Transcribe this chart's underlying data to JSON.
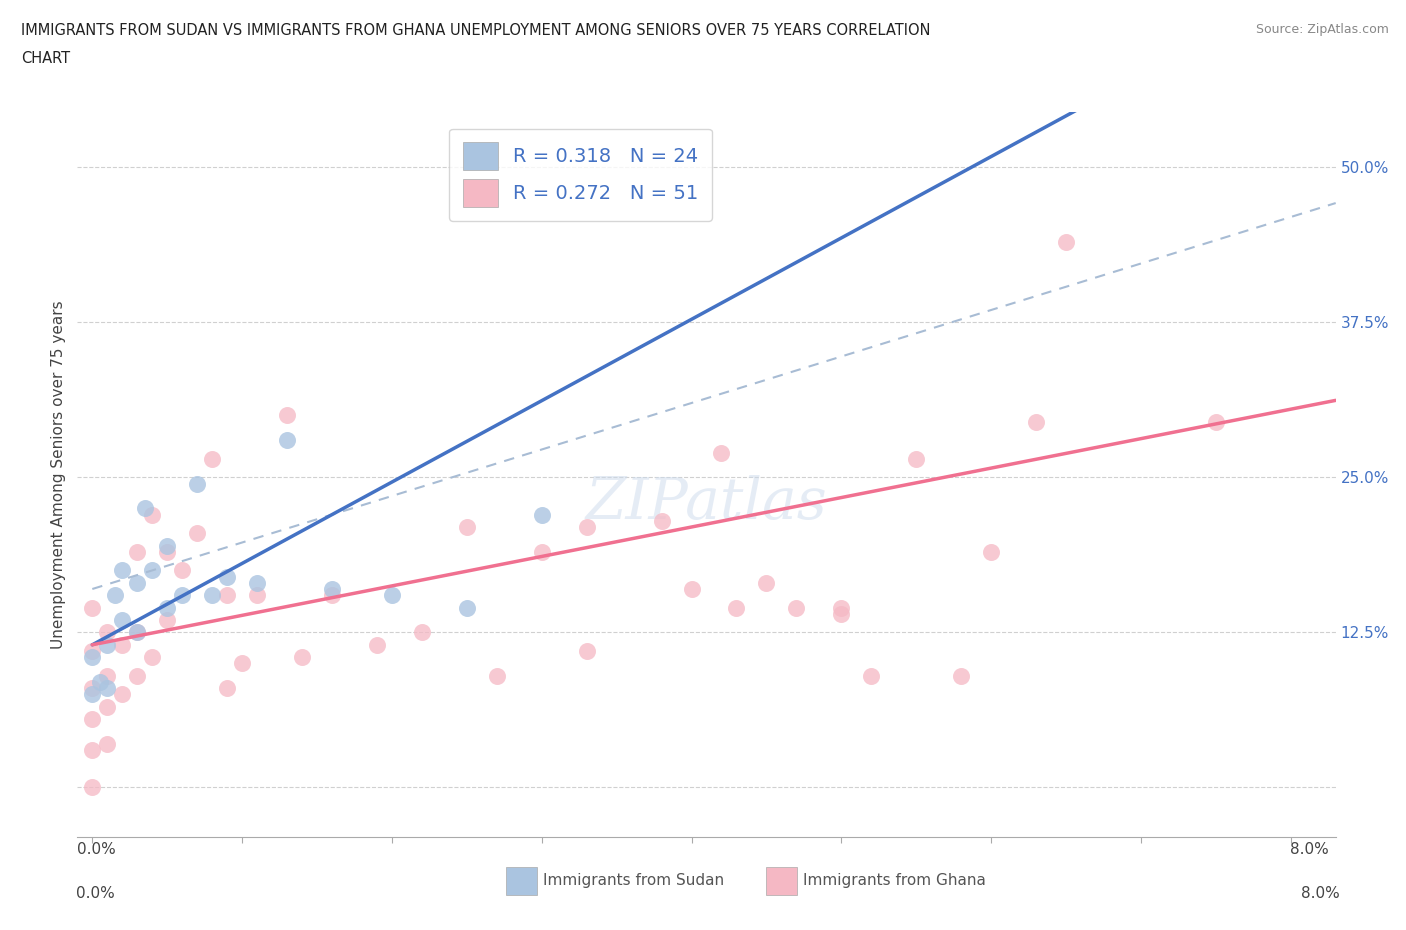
{
  "title_line1": "IMMIGRANTS FROM SUDAN VS IMMIGRANTS FROM GHANA UNEMPLOYMENT AMONG SENIORS OVER 75 YEARS CORRELATION",
  "title_line2": "CHART",
  "source": "Source: ZipAtlas.com",
  "ylabel": "Unemployment Among Seniors over 75 years",
  "xlim": [
    -0.001,
    0.083
  ],
  "ylim": [
    -0.04,
    0.545
  ],
  "x_ticks": [
    0.0,
    0.01,
    0.02,
    0.03,
    0.04,
    0.05,
    0.06,
    0.07,
    0.08
  ],
  "x_tick_labels": [
    "0.0%",
    "",
    "",
    "",
    "",
    "",
    "",
    "",
    "8.0%"
  ],
  "y_ticks": [
    0.0,
    0.125,
    0.25,
    0.375,
    0.5
  ],
  "y_tick_labels": [
    "",
    "12.5%",
    "25.0%",
    "37.5%",
    "50.0%"
  ],
  "sudan_color": "#aac4e0",
  "ghana_color": "#f5b8c4",
  "sudan_line_color": "#4472c4",
  "ghana_line_color": "#f07090",
  "dashed_line_color": "#a8bcd4",
  "sudan_R": 0.318,
  "sudan_N": 24,
  "ghana_R": 0.272,
  "ghana_N": 51,
  "legend_sudan_label": "Immigrants from Sudan",
  "legend_ghana_label": "Immigrants from Ghana",
  "watermark": "ZIPatlas",
  "sudan_x": [
    0.0,
    0.0,
    0.0005,
    0.001,
    0.001,
    0.0015,
    0.002,
    0.002,
    0.003,
    0.003,
    0.0035,
    0.004,
    0.005,
    0.005,
    0.006,
    0.007,
    0.008,
    0.009,
    0.011,
    0.013,
    0.016,
    0.02,
    0.025,
    0.03
  ],
  "sudan_y": [
    0.075,
    0.105,
    0.085,
    0.08,
    0.115,
    0.155,
    0.135,
    0.175,
    0.125,
    0.165,
    0.225,
    0.175,
    0.145,
    0.195,
    0.155,
    0.245,
    0.155,
    0.17,
    0.165,
    0.28,
    0.16,
    0.155,
    0.145,
    0.22
  ],
  "ghana_x": [
    0.0,
    0.0,
    0.0,
    0.0,
    0.0,
    0.0,
    0.001,
    0.001,
    0.001,
    0.001,
    0.002,
    0.002,
    0.003,
    0.003,
    0.003,
    0.004,
    0.004,
    0.005,
    0.005,
    0.006,
    0.007,
    0.008,
    0.009,
    0.009,
    0.01,
    0.011,
    0.013,
    0.014,
    0.016,
    0.019,
    0.022,
    0.025,
    0.027,
    0.03,
    0.033,
    0.033,
    0.038,
    0.04,
    0.042,
    0.043,
    0.045,
    0.047,
    0.05,
    0.05,
    0.052,
    0.055,
    0.058,
    0.06,
    0.063,
    0.065,
    0.075
  ],
  "ghana_y": [
    0.0,
    0.03,
    0.055,
    0.08,
    0.11,
    0.145,
    0.035,
    0.065,
    0.09,
    0.125,
    0.075,
    0.115,
    0.09,
    0.125,
    0.19,
    0.105,
    0.22,
    0.135,
    0.19,
    0.175,
    0.205,
    0.265,
    0.08,
    0.155,
    0.1,
    0.155,
    0.3,
    0.105,
    0.155,
    0.115,
    0.125,
    0.21,
    0.09,
    0.19,
    0.11,
    0.21,
    0.215,
    0.16,
    0.27,
    0.145,
    0.165,
    0.145,
    0.145,
    0.14,
    0.09,
    0.265,
    0.09,
    0.19,
    0.295,
    0.44,
    0.295
  ],
  "sudan_line_x0": 0.0,
  "sudan_line_y0": 0.115,
  "sudan_line_x1": 0.016,
  "sudan_line_y1": 0.22,
  "ghana_line_x0": 0.0,
  "ghana_line_y0": 0.115,
  "ghana_line_x1": 0.08,
  "ghana_line_y1": 0.305,
  "dashed_line_x0": 0.0,
  "dashed_line_y0": 0.16,
  "dashed_line_x1": 0.08,
  "dashed_line_y1": 0.46
}
